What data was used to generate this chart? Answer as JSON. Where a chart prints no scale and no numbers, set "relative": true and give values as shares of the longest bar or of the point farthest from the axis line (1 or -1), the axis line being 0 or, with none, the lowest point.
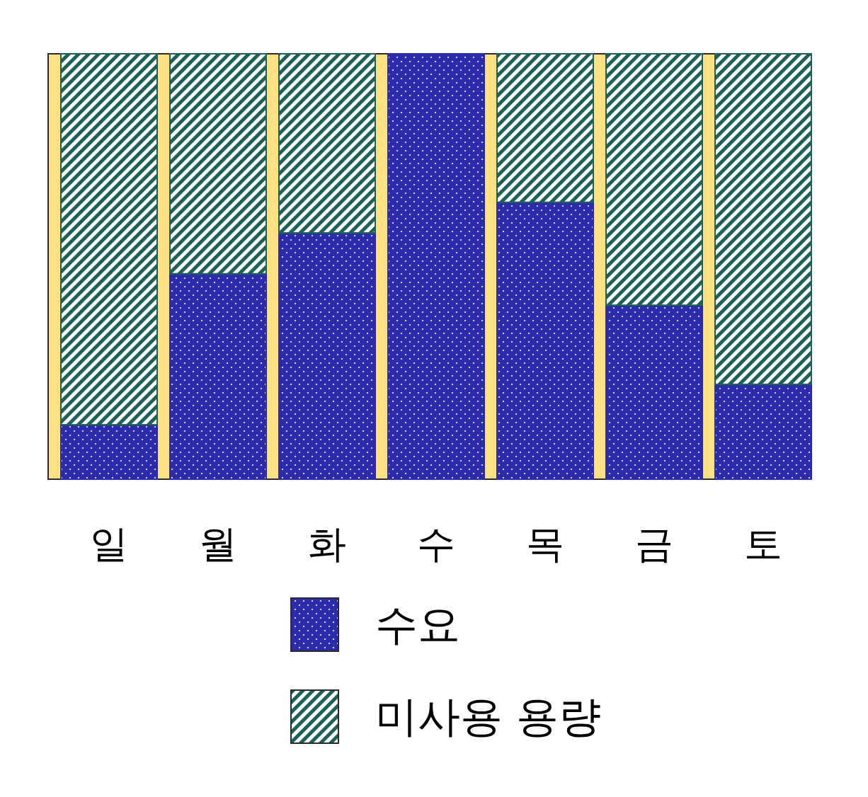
{
  "chart_data": {
    "type": "bar",
    "stacked": true,
    "relative": true,
    "legend": "bottom",
    "categories": [
      "일",
      "월",
      "화",
      "수",
      "목",
      "금",
      "토"
    ],
    "series": [
      {
        "name": "수요",
        "color": "#2b2bab",
        "values": [
          0.128,
          0.483,
          0.579,
          1.0,
          0.651,
          0.409,
          0.223
        ]
      },
      {
        "name": "미사용 용량",
        "color": "#1d6158",
        "values": [
          0.872,
          0.517,
          0.421,
          0.0,
          0.349,
          0.591,
          0.777
        ]
      }
    ]
  }
}
